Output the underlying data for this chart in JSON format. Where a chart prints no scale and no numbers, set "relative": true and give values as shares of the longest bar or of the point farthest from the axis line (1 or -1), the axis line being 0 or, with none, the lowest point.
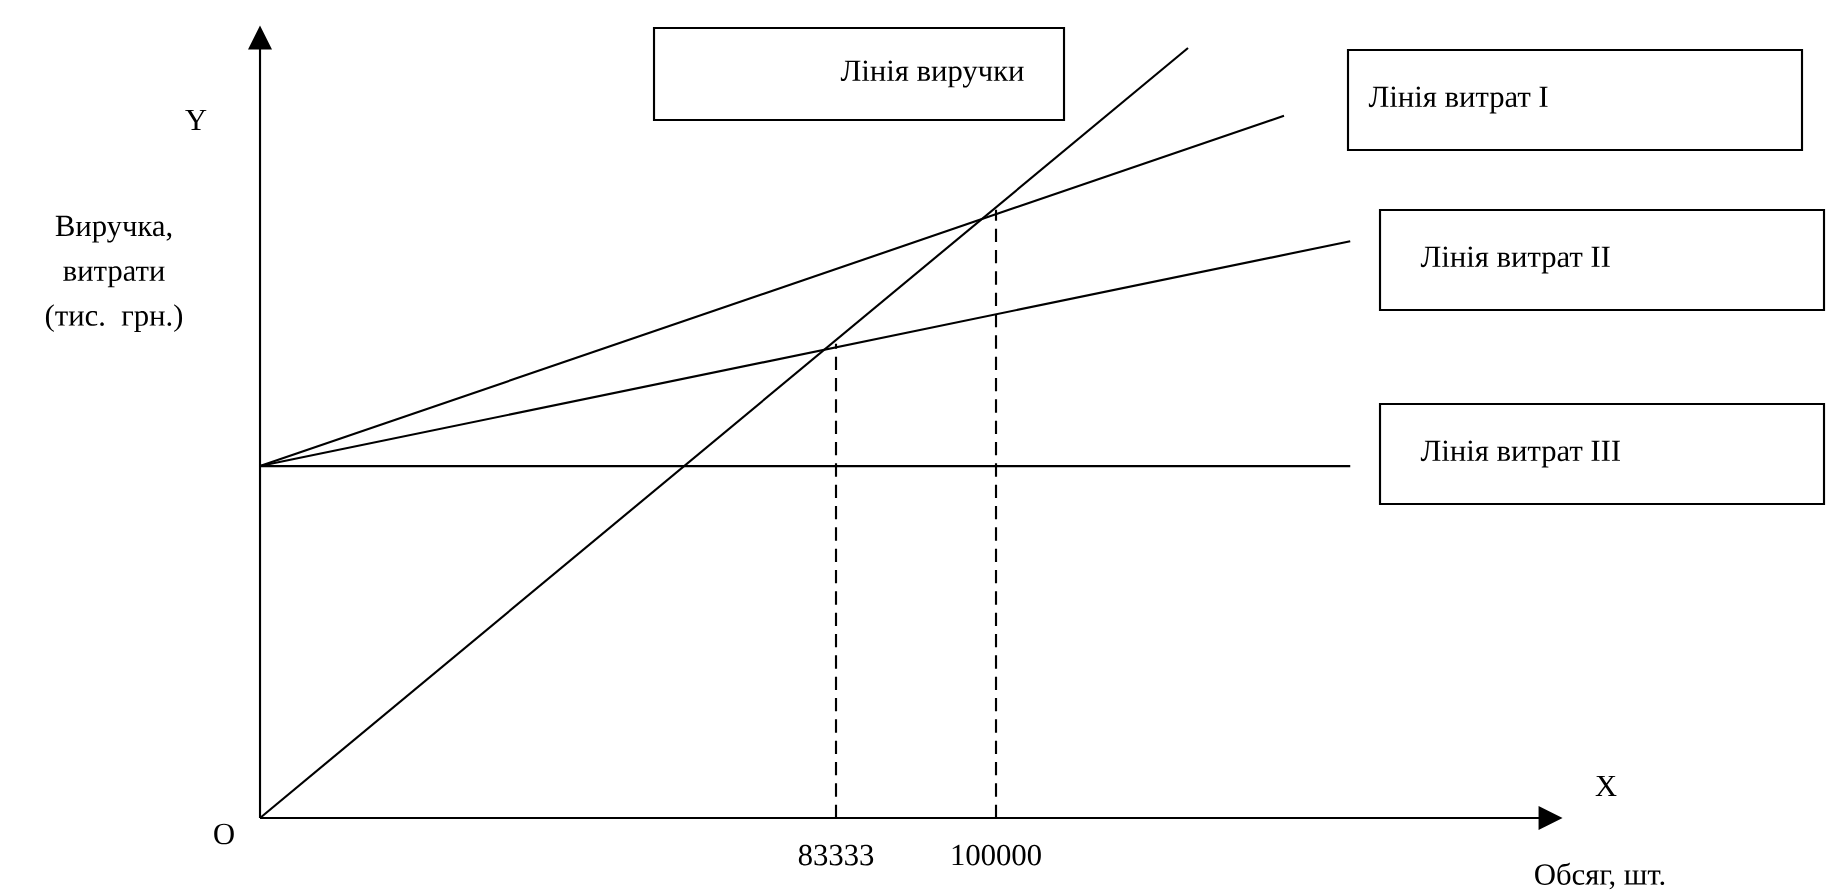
{
  "chart_data": {
    "type": "line",
    "relative": true,
    "xlabel": "Обсяг, шт.",
    "ylabel": "Виручка, витрати (тис. грн.)",
    "xlim": [
      23333,
      156667
    ],
    "xticks": [
      83333,
      100000
    ],
    "tick_labels": "x",
    "marker": "none",
    "line_style": "solid",
    "grid": false,
    "legend": false,
    "annotations": [
      "Y",
      "X",
      "O"
    ],
    "series": [
      {
        "name": "Лінія виручки",
        "color": "#000000",
        "x": [
          23333,
          120000
        ],
        "values": [
          0,
          1
        ]
      },
      {
        "name": "Лінія витрат I",
        "color": "#000000",
        "x": [
          23333,
          130000
        ],
        "values": [
          0.457,
          0.912
        ]
      },
      {
        "name": "Лінія витрат II",
        "color": "#000000",
        "x": [
          23333,
          136900
        ],
        "values": [
          0.457,
          0.749
        ]
      },
      {
        "name": "Лінія витрат III",
        "color": "#000000",
        "x": [
          23333,
          136900
        ],
        "values": [
          0.457,
          0.457
        ]
      },
      {
        "color": "#000000",
        "line_style": "dashed",
        "x": [
          83333,
          83333
        ],
        "values": [
          0,
          0.616
        ]
      },
      {
        "color": "#000000",
        "line_style": "dashed",
        "x": [
          100000,
          100000
        ],
        "values": [
          0,
          0.79
        ]
      }
    ]
  }
}
